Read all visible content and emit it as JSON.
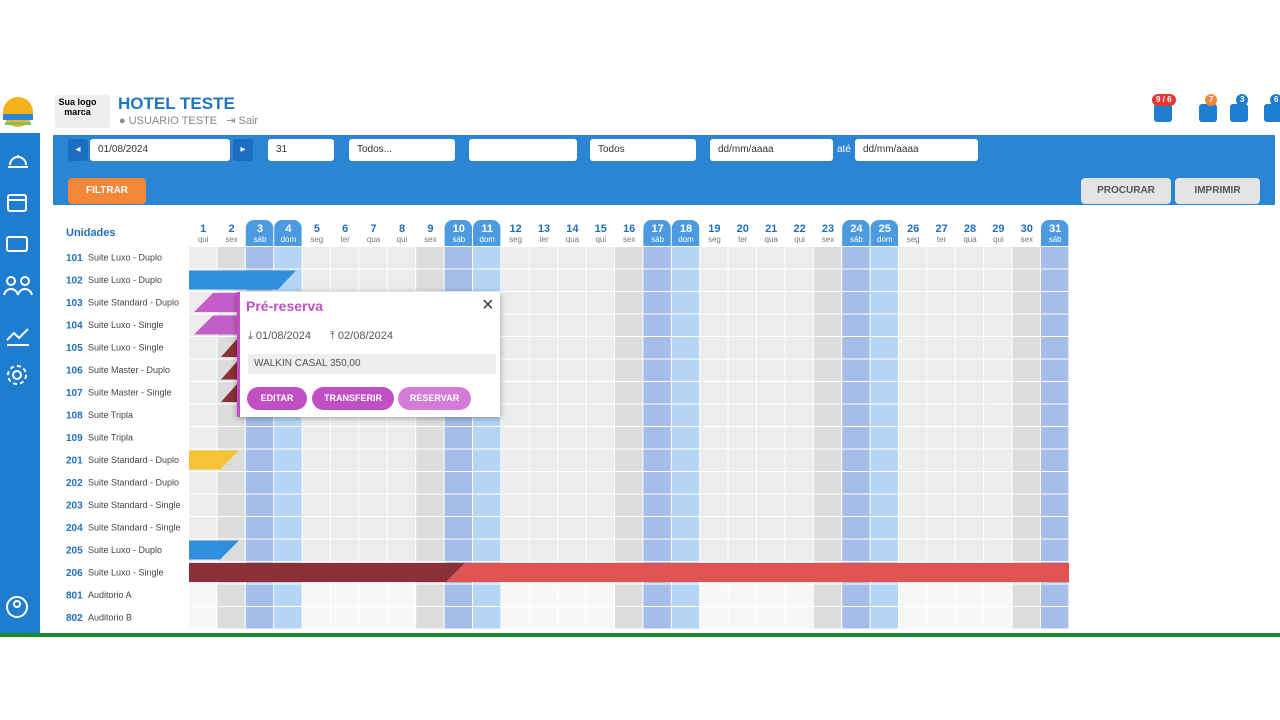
{
  "header": {
    "logo_text": "Sua logo marca",
    "hotel_name": "HOTEL TESTE",
    "user": "USUARIO TESTE",
    "logout": "Sair",
    "badges": [
      "9 / 6",
      "7",
      "3",
      "6"
    ]
  },
  "toolbar": {
    "date": "01/08/2024",
    "days": "31",
    "filter1": "Todos...",
    "filter2": "Todos",
    "from": "dd/mm/aaaa",
    "until": "até",
    "to": "dd/mm/aaaa",
    "filter_button": "FILTRAR",
    "search_button": "PROCURAR",
    "print_button": "IMPRIMIR"
  },
  "grid": {
    "units_label": "Unidades",
    "days": [
      [
        "1",
        "qui"
      ],
      [
        "2",
        "sex"
      ],
      [
        "3",
        "sáb"
      ],
      [
        "4",
        "dom"
      ],
      [
        "5",
        "seg"
      ],
      [
        "6",
        "ter"
      ],
      [
        "7",
        "qua"
      ],
      [
        "8",
        "qui"
      ],
      [
        "9",
        "sex"
      ],
      [
        "10",
        "sáb"
      ],
      [
        "11",
        "dom"
      ],
      [
        "12",
        "seg"
      ],
      [
        "13",
        "ter"
      ],
      [
        "14",
        "qua"
      ],
      [
        "15",
        "qui"
      ],
      [
        "16",
        "sex"
      ],
      [
        "17",
        "sáb"
      ],
      [
        "18",
        "dom"
      ],
      [
        "19",
        "seg"
      ],
      [
        "20",
        "ter"
      ],
      [
        "21",
        "qua"
      ],
      [
        "22",
        "qui"
      ],
      [
        "23",
        "sex"
      ],
      [
        "24",
        "sáb"
      ],
      [
        "25",
        "dom"
      ],
      [
        "26",
        "seg"
      ],
      [
        "27",
        "ter"
      ],
      [
        "28",
        "qua"
      ],
      [
        "29",
        "qui"
      ],
      [
        "30",
        "sex"
      ],
      [
        "31",
        "sáb"
      ]
    ],
    "units": [
      [
        "101",
        "Suite Luxo - Duplo"
      ],
      [
        "102",
        "Suite Luxo - Duplo"
      ],
      [
        "103",
        "Suite Standard - Duplo"
      ],
      [
        "104",
        "Suite Luxo - Single"
      ],
      [
        "105",
        "Suite Luxo - Single"
      ],
      [
        "106",
        "Suite Master - Duplo"
      ],
      [
        "107",
        "Suite Master - Single"
      ],
      [
        "108",
        "Suite Tripla"
      ],
      [
        "109",
        "Suite Tripla"
      ],
      [
        "201",
        "Suite Standard - Duplo"
      ],
      [
        "202",
        "Suite Standard - Duplo"
      ],
      [
        "203",
        "Suite Standard - Single"
      ],
      [
        "204",
        "Suite Standard - Single"
      ],
      [
        "205",
        "Suite Luxo - Duplo"
      ],
      [
        "206",
        "Suite Luxo - Single"
      ],
      [
        "801",
        "Auditorio A"
      ],
      [
        "802",
        "Auditorio B"
      ]
    ]
  },
  "popup": {
    "title": "Pré-reserva",
    "checkin": "01/08/2024",
    "checkout": "02/08/2024",
    "note": "WALKIN CASAL 350,00",
    "buttons": [
      "EDITAR",
      "TRANSFERIR",
      "RESERVAR"
    ]
  }
}
